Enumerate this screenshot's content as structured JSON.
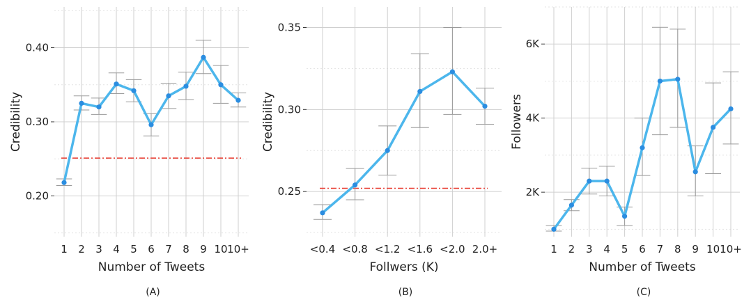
{
  "colors": {
    "line": "#4cb6ec",
    "point": "#2b8de0",
    "reference": "#e8372c",
    "grid_major": "#cfcfcf",
    "grid_minor": "#e3e3e3",
    "errorbar": "#9a9a9a"
  },
  "chart_data": [
    {
      "type": "line",
      "panel_label": "(A)",
      "xlabel": "Number of Tweets",
      "ylabel": "Credibility",
      "categories": [
        "1",
        "2",
        "3",
        "4",
        "5",
        "6",
        "7",
        "8",
        "9",
        "10",
        "10+"
      ],
      "values": [
        0.218,
        0.325,
        0.32,
        0.351,
        0.342,
        0.296,
        0.335,
        0.348,
        0.387,
        0.35,
        0.329
      ],
      "error_low": [
        0.214,
        0.316,
        0.31,
        0.338,
        0.327,
        0.281,
        0.318,
        0.33,
        0.365,
        0.325,
        0.32
      ],
      "error_high": [
        0.223,
        0.335,
        0.332,
        0.366,
        0.357,
        0.311,
        0.352,
        0.367,
        0.41,
        0.376,
        0.339
      ],
      "reference_line": 0.251,
      "ylim": [
        0.145,
        0.455
      ],
      "yticks": [
        {
          "value": 0.2,
          "label": "0.20"
        },
        {
          "value": 0.3,
          "label": "0.30"
        },
        {
          "value": 0.4,
          "label": "0.40"
        }
      ],
      "minor_yticks": [
        0.15,
        0.25,
        0.35,
        0.45
      ],
      "grid": true
    },
    {
      "type": "line",
      "panel_label": "(B)",
      "xlabel": "Follwers (K)",
      "ylabel": "Credibility",
      "categories": [
        "<0.4",
        "<0.8",
        "<1.2",
        "<1.6",
        "<2.0",
        "2.0+"
      ],
      "values": [
        0.237,
        0.254,
        0.275,
        0.311,
        0.323,
        0.302
      ],
      "error_low": [
        0.233,
        0.245,
        0.26,
        0.289,
        0.297,
        0.291
      ],
      "error_high": [
        0.242,
        0.264,
        0.29,
        0.334,
        0.35,
        0.313
      ],
      "reference_line": 0.252,
      "ylim": [
        0.2225,
        0.3625
      ],
      "yticks": [
        {
          "value": 0.25,
          "label": "0.25"
        },
        {
          "value": 0.3,
          "label": "0.30"
        },
        {
          "value": 0.35,
          "label": "0.35"
        }
      ],
      "minor_yticks": [
        0.225,
        0.275,
        0.325
      ],
      "grid": true
    },
    {
      "type": "line",
      "panel_label": "(C)",
      "xlabel": "Number of Tweets",
      "ylabel": "Followers",
      "categories": [
        "1",
        "2",
        "3",
        "4",
        "5",
        "6",
        "7",
        "8",
        "9",
        "10",
        "10+"
      ],
      "values": [
        1000,
        1650,
        2300,
        2300,
        1350,
        3200,
        5000,
        5050,
        2550,
        3750,
        4250
      ],
      "error_low": [
        950,
        1500,
        1950,
        1900,
        1100,
        2450,
        3550,
        3750,
        1900,
        2500,
        3300
      ],
      "error_high": [
        1100,
        1800,
        2650,
        2700,
        1600,
        4000,
        6450,
        6400,
        3250,
        4950,
        5250
      ],
      "ylim": [
        800,
        7000
      ],
      "yticks": [
        {
          "value": 2000,
          "label": "2K"
        },
        {
          "value": 4000,
          "label": "4K"
        },
        {
          "value": 6000,
          "label": "6K"
        }
      ],
      "minor_yticks": [
        1000,
        3000,
        5000,
        7000
      ],
      "grid": true
    }
  ]
}
